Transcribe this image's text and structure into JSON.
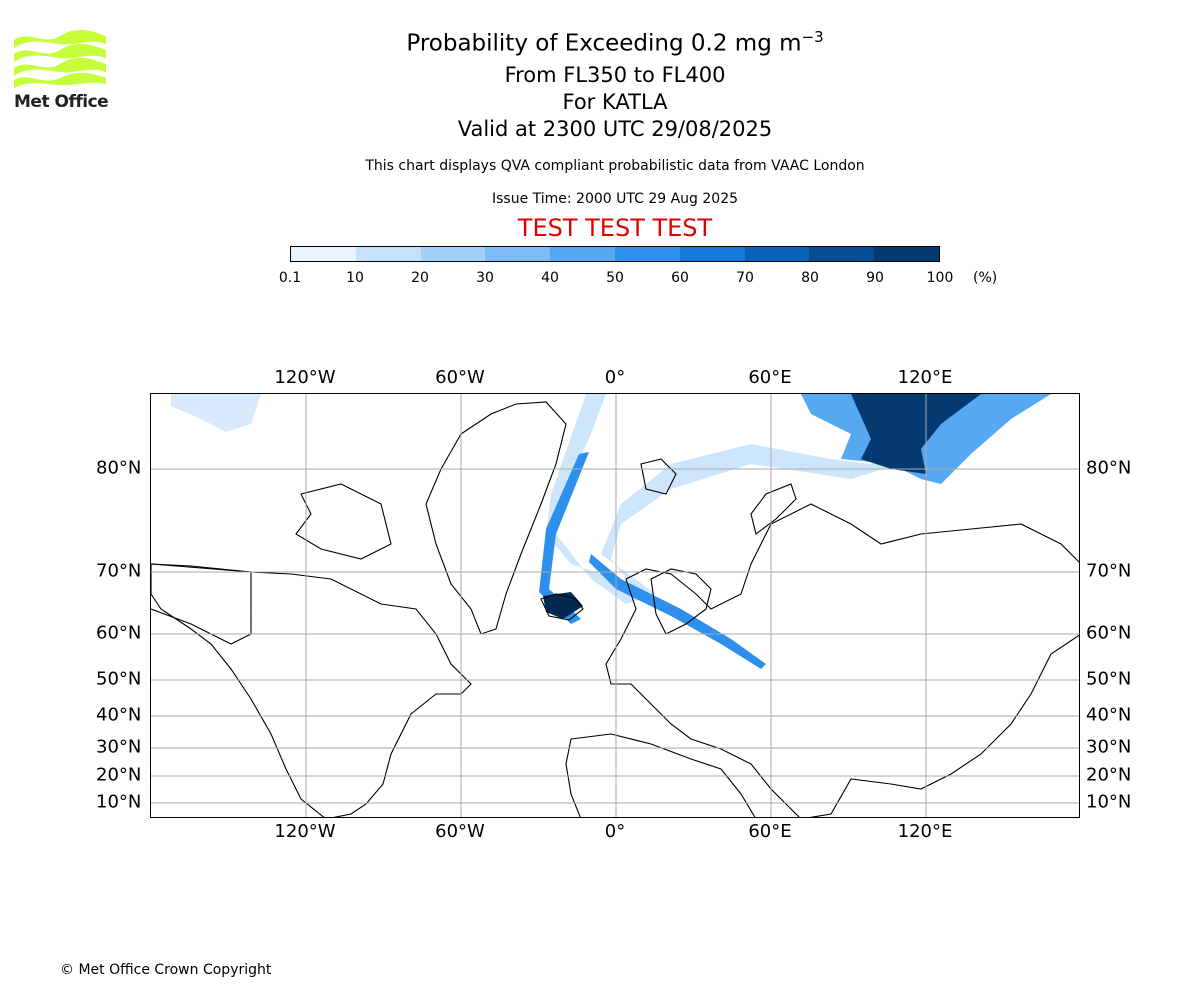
{
  "logo": {
    "text": "Met Office",
    "accent": "#c6ff3a"
  },
  "title": {
    "main": "Probability of Exceeding 0.2 mg m",
    "superscript": "−3"
  },
  "subtitles": [
    "From FL350 to FL400",
    "For KATLA",
    "Valid at 2300 UTC 29/08/2025"
  ],
  "notes": [
    "This chart displays QVA compliant probabilistic data from VAAC London",
    "Issue Time: 2000 UTC 29 Aug 2025"
  ],
  "test_banner": {
    "text": "TEST TEST TEST",
    "color": "#e00000"
  },
  "colorbar": {
    "ticks": [
      "0.1",
      "10",
      "20",
      "30",
      "40",
      "50",
      "60",
      "70",
      "80",
      "90",
      "100"
    ],
    "unit": "(%)",
    "colors": [
      "#eaf4ff",
      "#c6e2fb",
      "#a3d0f7",
      "#7cbbf5",
      "#57a8f2",
      "#2e90ec",
      "#157ad8",
      "#0a62b8",
      "#074d93",
      "#053a70",
      "#022a50"
    ]
  },
  "map": {
    "lon_labels": [
      "120°W",
      "60°W",
      "0°",
      "60°E",
      "120°E"
    ],
    "lat_labels": [
      "80°N",
      "70°N",
      "60°N",
      "50°N",
      "40°N",
      "30°N",
      "20°N",
      "10°N"
    ],
    "gridline_color": "#aaaaaa",
    "volcano": "KATLA"
  },
  "copyright": "© Met Office Crown Copyright"
}
